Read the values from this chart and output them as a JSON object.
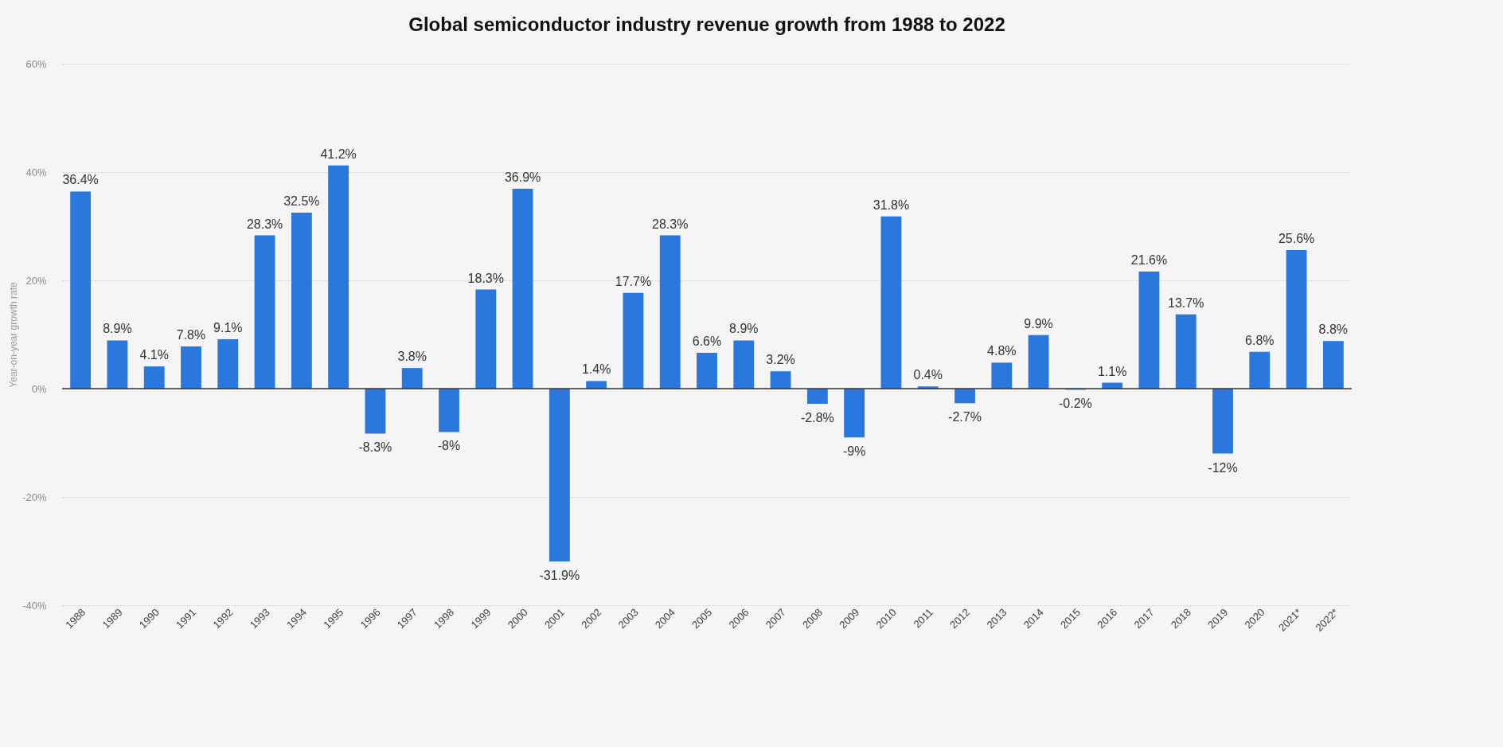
{
  "chart_data": {
    "type": "bar",
    "title": "Global semiconductor industry revenue growth from 1988 to 2022",
    "ylabel": "Year-on-year growth rate",
    "categories": [
      "1988",
      "1989",
      "1990",
      "1991",
      "1992",
      "1993",
      "1994",
      "1995",
      "1996",
      "1997",
      "1998",
      "1999",
      "2000",
      "2001",
      "2002",
      "2003",
      "2004",
      "2005",
      "2006",
      "2007",
      "2008",
      "2009",
      "2010",
      "2011",
      "2012",
      "2013",
      "2014",
      "2015",
      "2016",
      "2017",
      "2018",
      "2019",
      "2020",
      "2021*",
      "2022*"
    ],
    "values": [
      36.4,
      8.9,
      4.1,
      7.8,
      9.1,
      28.3,
      32.5,
      41.2,
      -8.3,
      3.8,
      -8,
      18.3,
      36.9,
      -31.9,
      1.4,
      17.7,
      28.3,
      6.6,
      8.9,
      3.2,
      -2.8,
      -9,
      31.8,
      0.4,
      -2.7,
      4.8,
      9.9,
      -0.2,
      1.1,
      21.6,
      13.7,
      -12,
      6.8,
      25.6,
      8.8
    ],
    "value_labels": [
      "36.4%",
      "8.9%",
      "4.1%",
      "7.8%",
      "9.1%",
      "28.3%",
      "32.5%",
      "41.2%",
      "-8.3%",
      "3.8%",
      "-8%",
      "18.3%",
      "36.9%",
      "-31.9%",
      "1.4%",
      "17.7%",
      "28.3%",
      "6.6%",
      "8.9%",
      "3.2%",
      "-2.8%",
      "-9%",
      "31.8%",
      "0.4%",
      "-2.7%",
      "4.8%",
      "9.9%",
      "-0.2%",
      "1.1%",
      "21.6%",
      "13.7%",
      "-12%",
      "6.8%",
      "25.6%",
      "8.8%"
    ],
    "color": "#2a77de",
    "ylim": [
      -40,
      60
    ],
    "yticks": [
      {
        "value": -40,
        "label": "-40%"
      },
      {
        "value": -20,
        "label": "-20%"
      },
      {
        "value": 0,
        "label": "0%"
      },
      {
        "value": 20,
        "label": "20%"
      },
      {
        "value": 40,
        "label": "40%"
      },
      {
        "value": 60,
        "label": "60%"
      }
    ],
    "grid": "y"
  }
}
